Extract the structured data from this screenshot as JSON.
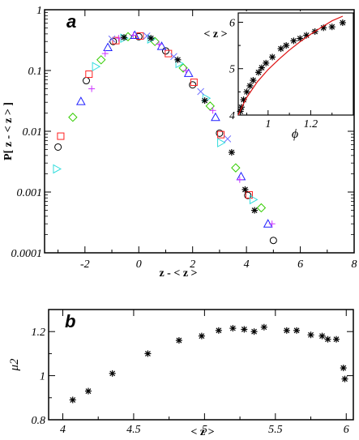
{
  "chart_data": [
    {
      "panel": "a",
      "type": "scatter",
      "xlabel": "z - < z >",
      "ylabel": "P[ z - < z > ]",
      "xlim": [
        -3.5,
        8
      ],
      "ylim": [
        0.0001,
        1
      ],
      "yscale": "log",
      "xticks": [
        -2,
        0,
        2,
        4,
        6,
        8
      ],
      "yticks": [
        0.0001,
        0.001,
        0.01,
        0.1,
        1
      ],
      "ytick_labels": [
        "0.0001",
        "0.001",
        "0.01",
        "0.1",
        "1"
      ],
      "series": [
        {
          "marker": "circle",
          "color": "#000000",
          "points": [
            [
              -3,
              0.0055
            ],
            [
              -1.95,
              0.068
            ],
            [
              -0.95,
              0.3
            ],
            [
              0,
              0.36
            ],
            [
              1,
              0.21
            ],
            [
              2,
              0.058
            ],
            [
              3,
              0.0093
            ],
            [
              4.05,
              0.00088
            ],
            [
              5,
              0.00016
            ]
          ]
        },
        {
          "marker": "square",
          "color": "#ff2020",
          "points": [
            [
              -2.9,
              0.0083
            ],
            [
              -1.85,
              0.087
            ],
            [
              -0.85,
              0.31
            ],
            [
              0.05,
              0.37
            ],
            [
              1.1,
              0.19
            ],
            [
              2.05,
              0.064
            ],
            [
              3.05,
              0.0088
            ],
            [
              4.1,
              0.0009
            ]
          ]
        },
        {
          "marker": "diamond",
          "color": "#33cc00",
          "points": [
            [
              -2.45,
              0.017
            ],
            [
              -1.4,
              0.15
            ],
            [
              -0.4,
              0.36
            ],
            [
              0.6,
              0.3
            ],
            [
              1.65,
              0.11
            ],
            [
              2.65,
              0.026
            ],
            [
              3.6,
              0.0025
            ],
            [
              4.55,
              0.00055
            ]
          ]
        },
        {
          "marker": "triangle-right",
          "color": "#33dddd",
          "points": [
            [
              -3.05,
              0.0024
            ],
            [
              -1.6,
              0.116
            ],
            [
              -0.55,
              0.34
            ],
            [
              0.45,
              0.33
            ],
            [
              1.5,
              0.13
            ],
            [
              2.5,
              0.035
            ],
            [
              3.05,
              0.0065
            ],
            [
              4.25,
              0.00075
            ]
          ]
        },
        {
          "marker": "triangle-up",
          "color": "#2020ff",
          "points": [
            [
              -2.15,
              0.031
            ],
            [
              -1.15,
              0.24
            ],
            [
              -0.15,
              0.38
            ],
            [
              0.85,
              0.25
            ],
            [
              1.85,
              0.09
            ],
            [
              2.85,
              0.017
            ],
            [
              3.8,
              0.0018
            ],
            [
              4.8,
              0.0003
            ]
          ]
        },
        {
          "marker": "plus",
          "color": "#cc33ff",
          "points": [
            [
              -1.75,
              0.05
            ],
            [
              -1.25,
              0.19
            ],
            [
              -0.75,
              0.34
            ],
            [
              -0.2,
              0.38
            ],
            [
              0.75,
              0.27
            ],
            [
              1.75,
              0.1
            ],
            [
              2.75,
              0.022
            ],
            [
              3.75,
              0.0016
            ],
            [
              4.95,
              0.0003
            ]
          ]
        },
        {
          "marker": "cross",
          "color": "#7070ff",
          "points": [
            [
              -1.0,
              0.33
            ],
            [
              0.3,
              0.37
            ],
            [
              1.3,
              0.17
            ],
            [
              2.3,
              0.045
            ],
            [
              3.3,
              0.0075
            ]
          ]
        },
        {
          "marker": "asterisk",
          "color": "#000000",
          "points": [
            [
              -0.55,
              0.35
            ],
            [
              0.45,
              0.34
            ],
            [
              1.45,
              0.15
            ],
            [
              2.45,
              0.032
            ],
            [
              3.45,
              0.0045
            ],
            [
              3.95,
              0.0011
            ],
            [
              4.3,
              0.0005
            ]
          ]
        }
      ]
    },
    {
      "panel": "a-inset",
      "type": "scatter",
      "xlabel": "ϕ",
      "ylabel": "< z >",
      "xlim": [
        0.86,
        1.4
      ],
      "ylim": [
        4,
        6.2
      ],
      "xticks": [
        1,
        1.2
      ],
      "yticks": [
        4,
        5,
        6
      ],
      "series": [
        {
          "marker": "asterisk",
          "color": "#000000",
          "points": [
            [
              0.87,
              4.08
            ],
            [
              0.875,
              4.17
            ],
            [
              0.885,
              4.33
            ],
            [
              0.9,
              4.5
            ],
            [
              0.915,
              4.63
            ],
            [
              0.93,
              4.75
            ],
            [
              0.955,
              4.92
            ],
            [
              0.97,
              5.02
            ],
            [
              0.99,
              5.12
            ],
            [
              1.02,
              5.25
            ],
            [
              1.06,
              5.43
            ],
            [
              1.085,
              5.5
            ],
            [
              1.12,
              5.6
            ],
            [
              1.15,
              5.65
            ],
            [
              1.18,
              5.72
            ],
            [
              1.22,
              5.8
            ],
            [
              1.26,
              5.88
            ],
            [
              1.3,
              5.9
            ],
            [
              1.35,
              5.99
            ]
          ]
        },
        {
          "type": "line",
          "color": "#dd1111",
          "points": [
            [
              0.86,
              4.0
            ],
            [
              0.88,
              4.2
            ],
            [
              0.9,
              4.38
            ],
            [
              0.95,
              4.72
            ],
            [
              1.0,
              4.98
            ],
            [
              1.05,
              5.2
            ],
            [
              1.1,
              5.4
            ],
            [
              1.15,
              5.58
            ],
            [
              1.2,
              5.74
            ],
            [
              1.25,
              5.89
            ],
            [
              1.3,
              6.03
            ],
            [
              1.35,
              6.13
            ]
          ]
        }
      ]
    },
    {
      "panel": "b",
      "type": "scatter",
      "xlabel": "< z >",
      "ylabel": "μ2",
      "xlim": [
        3.9,
        6.05
      ],
      "ylim": [
        0.8,
        1.3
      ],
      "xticks": [
        4,
        4.5,
        5,
        5.5,
        6
      ],
      "yticks": [
        0.8,
        1,
        1.2
      ],
      "series": [
        {
          "marker": "asterisk",
          "color": "#000000",
          "points": [
            [
              4.07,
              0.89
            ],
            [
              4.18,
              0.93
            ],
            [
              4.35,
              1.01
            ],
            [
              4.6,
              1.1
            ],
            [
              4.82,
              1.16
            ],
            [
              4.98,
              1.18
            ],
            [
              5.1,
              1.205
            ],
            [
              5.2,
              1.215
            ],
            [
              5.28,
              1.21
            ],
            [
              5.35,
              1.2
            ],
            [
              5.42,
              1.22
            ],
            [
              5.58,
              1.205
            ],
            [
              5.65,
              1.205
            ],
            [
              5.75,
              1.185
            ],
            [
              5.83,
              1.18
            ],
            [
              5.87,
              1.165
            ],
            [
              5.93,
              1.165
            ],
            [
              5.98,
              1.035
            ],
            [
              5.99,
              0.985
            ]
          ]
        }
      ]
    }
  ],
  "labels": {
    "panel_a": "a",
    "panel_b": "b",
    "a_xlabel": "z - < z >",
    "a_ylabel": "P[ z - < z > ]",
    "inset_xlabel": "ϕ",
    "inset_ylabel": "< z >",
    "b_xlabel": "< z >",
    "b_ylabel": "μ2"
  }
}
